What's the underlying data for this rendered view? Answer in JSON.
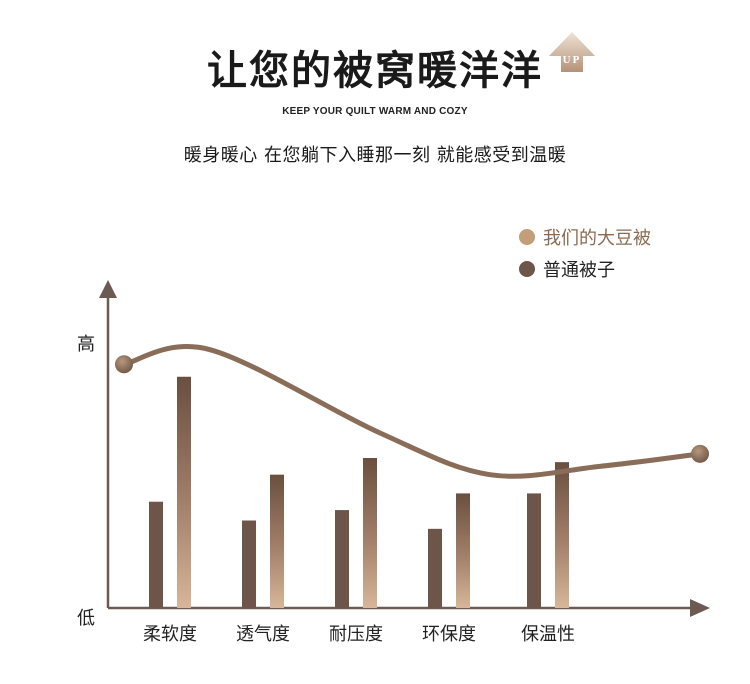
{
  "header": {
    "title": "让您的被窝暖洋洋",
    "badge_text": "UP",
    "subtitle_en": "KEEP YOUR QUILT WARM AND COZY",
    "subtitle_cn": "暖身暖心 在您躺下入睡那一刻 就能感受到温暖"
  },
  "colors": {
    "our_product": "#c49d7a",
    "ordinary": "#6d5549",
    "axis": "#6d5a50",
    "curve": "#8a6d58"
  },
  "chart_data": {
    "type": "bar",
    "categories": [
      "柔软度",
      "透气度",
      "耐压度",
      "环保度",
      "保温性"
    ],
    "series": [
      {
        "name": "普通被子",
        "values": [
          51,
          42,
          47,
          38,
          55
        ]
      },
      {
        "name": "我们的大豆被",
        "values": [
          111,
          64,
          72,
          55,
          70
        ]
      }
    ],
    "ylim": [
      0,
      120
    ],
    "y_tick_labels": {
      "high": "高",
      "low": "低"
    },
    "legend": {
      "position": "top-right",
      "entries": [
        "我们的大豆被",
        "普通被子"
      ]
    },
    "trend_curve": [
      117,
      124,
      84,
      64,
      68,
      74
    ]
  }
}
